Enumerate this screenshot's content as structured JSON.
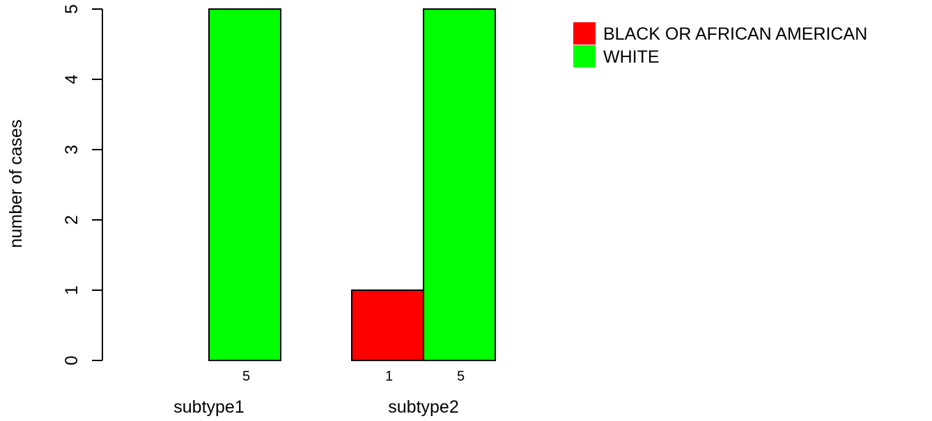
{
  "chart_data": {
    "type": "bar",
    "title": "",
    "xlabel": "",
    "ylabel": "number of cases",
    "ylim": [
      0,
      5
    ],
    "yticks": [
      0,
      1,
      2,
      3,
      4,
      5
    ],
    "grid": false,
    "legend_position": "top-right",
    "categories": [
      "subtype1",
      "subtype2"
    ],
    "series": [
      {
        "name": "BLACK OR AFRICAN AMERICAN",
        "color": "#FF0000",
        "values": [
          0,
          1
        ]
      },
      {
        "name": "WHITE",
        "color": "#00FF00",
        "values": [
          5,
          5
        ]
      }
    ],
    "bar_labels": [
      [
        "",
        "1"
      ],
      [
        "5",
        "5"
      ]
    ]
  }
}
